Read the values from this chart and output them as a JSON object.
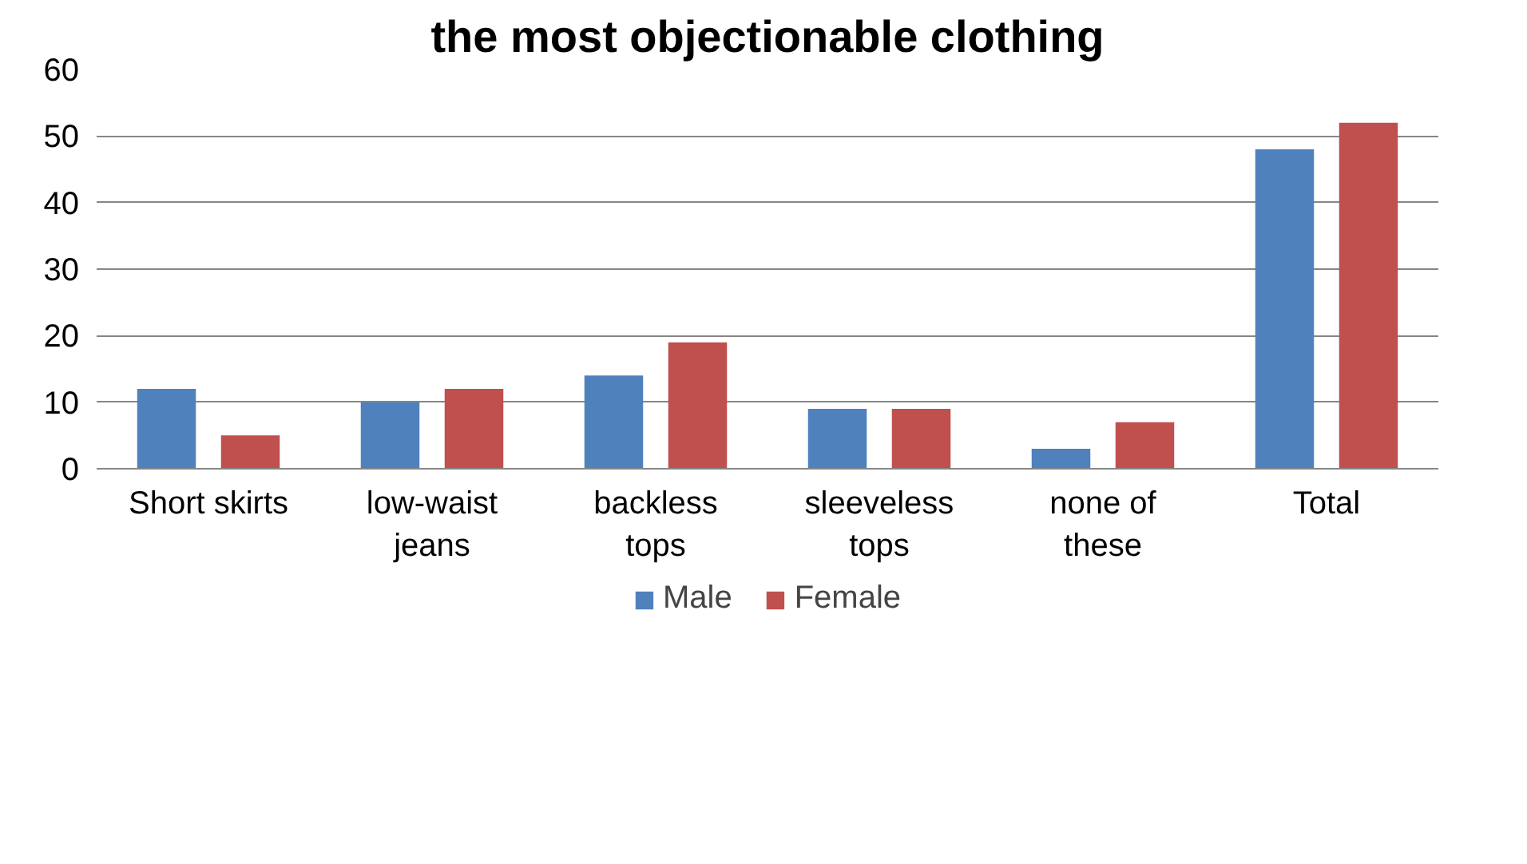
{
  "chart_data": {
    "type": "bar",
    "title": "the most objectionable clothing",
    "categories": [
      "Short skirts",
      "low-waist jeans",
      "backless tops",
      "sleeveless tops",
      "none of these",
      "Total"
    ],
    "series": [
      {
        "name": "Male",
        "color": "#4f81bd",
        "values": [
          12,
          10,
          14,
          9,
          3,
          48
        ]
      },
      {
        "name": "Female",
        "color": "#c0504d",
        "values": [
          5,
          12,
          19,
          9,
          7,
          52
        ]
      }
    ],
    "ylim": [
      0,
      60
    ],
    "yticks": [
      0,
      10,
      20,
      30,
      40,
      50,
      60
    ],
    "grid": "y",
    "legend": "bottom"
  }
}
